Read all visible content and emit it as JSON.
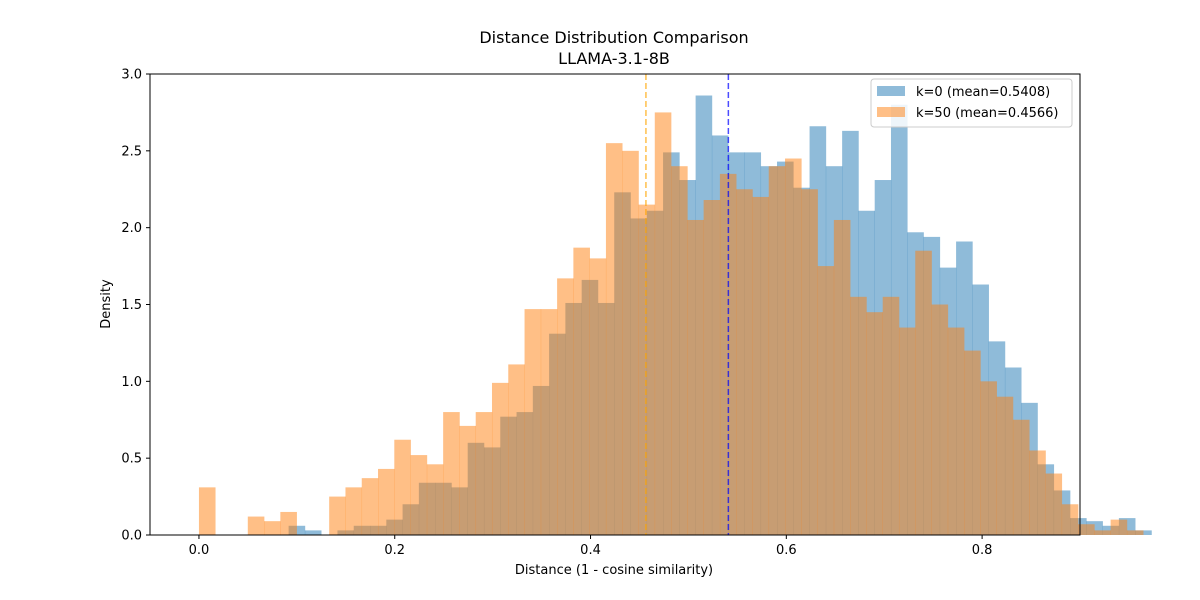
{
  "chart_data": {
    "type": "histogram",
    "title": "Distance Distribution Comparison",
    "subtitle": "LLAMA-3.1-8B",
    "xlabel": "Distance (1 - cosine similarity)",
    "ylabel": "Density",
    "xlim": [
      -0.05,
      0.9
    ],
    "ylim": [
      0,
      3.0
    ],
    "xticks": [
      "0.0",
      "0.2",
      "0.4",
      "0.6",
      "0.8"
    ],
    "xtick_values": [
      0.0,
      0.2,
      0.4,
      0.6,
      0.8
    ],
    "yticks": [
      "0.0",
      "0.5",
      "1.0",
      "1.5",
      "2.0",
      "2.5",
      "3.0"
    ],
    "ytick_values": [
      0.0,
      0.5,
      1.0,
      1.5,
      2.0,
      2.5,
      3.0
    ],
    "grid": false,
    "legend_position": "top-right",
    "series": [
      {
        "name": "k=0 (mean=0.5408)",
        "color": "#1f77b4",
        "alpha": 0.5,
        "mean": 0.5408,
        "mean_line_color": "#0000ff",
        "bin_start": 0.0916,
        "bin_width": 0.01663,
        "values": [
          0.06,
          0.03,
          0.0,
          0.03,
          0.06,
          0.06,
          0.1,
          0.2,
          0.34,
          0.34,
          0.31,
          0.6,
          0.57,
          0.77,
          0.8,
          0.97,
          1.31,
          1.51,
          1.66,
          1.51,
          2.23,
          2.06,
          2.11,
          2.49,
          2.31,
          2.86,
          2.6,
          2.49,
          2.49,
          2.4,
          2.43,
          2.26,
          2.66,
          2.4,
          2.63,
          2.11,
          2.31,
          2.8,
          1.97,
          1.94,
          1.74,
          1.91,
          1.63,
          1.26,
          1.09,
          0.86,
          0.46,
          0.29,
          0.11,
          0.09,
          0.06,
          0.11,
          0.03
        ]
      },
      {
        "name": "k=50 (mean=0.4566)",
        "color": "#ff7f0e",
        "alpha": 0.5,
        "mean": 0.4566,
        "mean_line_color": "#ffa500",
        "bin_start": 0.0,
        "bin_width": 0.01663,
        "values": [
          0.31,
          0.0,
          0.0,
          0.12,
          0.09,
          0.15,
          0.0,
          0.0,
          0.25,
          0.31,
          0.37,
          0.43,
          0.62,
          0.52,
          0.46,
          0.8,
          0.71,
          0.8,
          0.99,
          1.11,
          1.47,
          1.47,
          1.67,
          1.87,
          1.8,
          2.55,
          2.5,
          2.15,
          2.75,
          2.4,
          2.05,
          2.18,
          2.35,
          2.25,
          2.2,
          2.4,
          2.45,
          2.25,
          1.75,
          2.05,
          1.55,
          1.45,
          1.55,
          1.35,
          1.85,
          1.5,
          1.35,
          1.2,
          1.0,
          0.9,
          0.75,
          0.55,
          0.4,
          0.2,
          0.07,
          0.03,
          0.1,
          0.03,
          0.0,
          0.0,
          0.0,
          0.0,
          0.0,
          0.0,
          0.0,
          0.0,
          0.0,
          0.0,
          0.0,
          0.0,
          0.0,
          0.0,
          0.0,
          0.0,
          0.0,
          0.0,
          0.0,
          0.0,
          0.0,
          0.0,
          0.0,
          0.0,
          0.0,
          0.0,
          0.0,
          0.0,
          0.0,
          0.0,
          0.0,
          0.0,
          0.0,
          0.0,
          0.0,
          0.0,
          0.0,
          0.0,
          0.0,
          0.0,
          0.0,
          0.0,
          0.0,
          0.0,
          0.0,
          0.0,
          0.0,
          0.0,
          0.0,
          0.0,
          0.0
        ]
      }
    ]
  }
}
